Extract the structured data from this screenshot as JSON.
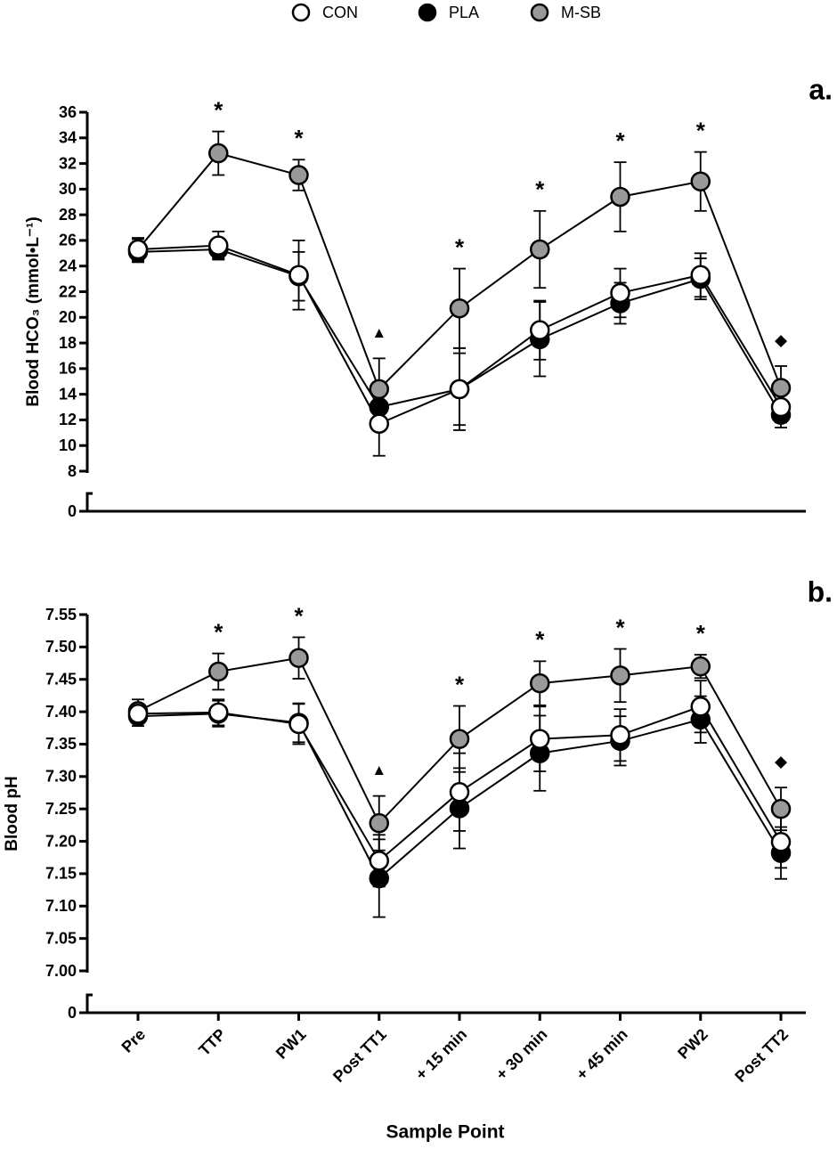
{
  "chart_data": [
    {
      "type": "line",
      "panel_label": "a.",
      "y_label": "Blood HCO₃ (mmol•L⁻¹)",
      "ylim": [
        8,
        36
      ],
      "yticks": [
        0,
        8,
        10,
        12,
        14,
        16,
        18,
        20,
        22,
        24,
        26,
        28,
        30,
        32,
        34,
        36
      ],
      "axis_break": true,
      "series": [
        {
          "name": "CON",
          "color": "#ffffff",
          "values": [
            25.3,
            25.6,
            23.3,
            11.7,
            14.4,
            19.0,
            21.9,
            23.3,
            13.0
          ],
          "errors": [
            0.8,
            1.1,
            2.7,
            2.5,
            3.2,
            2.3,
            1.9,
            1.7,
            1.2
          ]
        },
        {
          "name": "PLA",
          "color": "#000000",
          "values": [
            25.1,
            25.3,
            23.2,
            13.0,
            14.4,
            18.3,
            21.1,
            23.0,
            12.4
          ],
          "errors": [
            0.8,
            0.7,
            1.9,
            1.0,
            2.8,
            2.9,
            1.6,
            1.6,
            1.0
          ]
        },
        {
          "name": "M-SB",
          "color": "#999999",
          "values": [
            25.3,
            32.8,
            31.1,
            14.4,
            20.7,
            25.3,
            29.4,
            30.6,
            14.5
          ],
          "errors": [
            0.9,
            1.7,
            1.2,
            2.4,
            3.1,
            3.0,
            2.7,
            2.3,
            1.7
          ]
        }
      ],
      "annotations": [
        {
          "text": "*",
          "x": 1
        },
        {
          "text": "*",
          "x": 2
        },
        {
          "text": "▲",
          "x": 3
        },
        {
          "text": "*",
          "x": 4
        },
        {
          "text": "*",
          "x": 5
        },
        {
          "text": "*",
          "x": 6
        },
        {
          "text": "*",
          "x": 7
        },
        {
          "text": "◆",
          "x": 8
        }
      ]
    },
    {
      "type": "line",
      "panel_label": "b.",
      "y_label": "Blood pH",
      "x_label": "Sample Point",
      "categories": [
        "Pre",
        "TTP",
        "PW1",
        "Post TT1",
        "+ 15 min",
        "+ 30 min",
        "+ 45 min",
        "PW2",
        "Post TT2"
      ],
      "ylim": [
        7,
        7.55
      ],
      "yticks": [
        0,
        {
          "value": 7,
          "label": "7.00"
        },
        7.05,
        {
          "value": 7.1,
          "label": "7.10"
        },
        7.15,
        {
          "value": 7.2,
          "label": "7.20"
        },
        7.25,
        {
          "value": 7.3,
          "label": "7.30"
        },
        7.35,
        {
          "value": 7.4,
          "label": "7.40"
        },
        7.45,
        {
          "value": 7.5,
          "label": "7.50"
        },
        7.55
      ],
      "axis_break": true,
      "series": [
        {
          "color": "#ffffff",
          "values": [
            7.397,
            7.399,
            7.381,
            7.17,
            7.276,
            7.358,
            7.364,
            7.408,
            7.199
          ],
          "errors": [
            0.015,
            0.02,
            0.031,
            0.04,
            0.06,
            0.05,
            0.04,
            0.04,
            0.04
          ]
        },
        {
          "color": "#000000",
          "values": [
            7.393,
            7.397,
            7.383,
            7.143,
            7.251,
            7.336,
            7.355,
            7.388,
            7.182
          ],
          "errors": [
            0.015,
            0.02,
            0.03,
            0.06,
            0.062,
            0.058,
            0.038,
            0.036,
            0.04
          ]
        },
        {
          "color": "#999999",
          "values": [
            7.401,
            7.462,
            7.483,
            7.228,
            7.358,
            7.444,
            7.456,
            7.47,
            7.25
          ],
          "errors": [
            0.018,
            0.028,
            0.032,
            0.042,
            0.051,
            0.034,
            0.041,
            0.018,
            0.033
          ]
        }
      ],
      "annotations": [
        {
          "text": "*",
          "x": 1
        },
        {
          "text": "*",
          "x": 2
        },
        {
          "text": "▲",
          "x": 3
        },
        {
          "text": "*",
          "x": 4
        },
        {
          "text": "*",
          "x": 5
        },
        {
          "text": "*",
          "x": 6
        },
        {
          "text": "*",
          "x": 7
        },
        {
          "text": "◆",
          "x": 8
        }
      ]
    }
  ]
}
